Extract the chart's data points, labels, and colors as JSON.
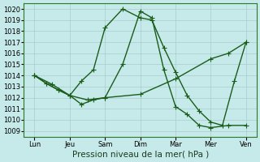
{
  "title": "",
  "xlabel": "Pression niveau de la mer( hPa )",
  "background_color": "#c6eaea",
  "grid_color": "#a8cccc",
  "line_color": "#1a5c1a",
  "xtick_labels": [
    "Lun",
    "Jeu",
    "Sam",
    "Dim",
    "Mar",
    "Mer",
    "Ven"
  ],
  "xtick_positions": [
    0,
    1,
    2,
    3,
    4,
    5,
    6
  ],
  "ylim": [
    1008.5,
    1020.5
  ],
  "yticks": [
    1009,
    1010,
    1011,
    1012,
    1013,
    1014,
    1015,
    1016,
    1017,
    1018,
    1019,
    1020
  ],
  "line1_x": [
    0,
    0.33,
    0.67,
    1.0,
    1.33,
    1.67,
    2.0,
    2.5,
    3.0,
    3.33,
    3.67,
    4.0,
    4.33,
    4.67,
    5.0,
    5.33,
    5.67,
    6.0
  ],
  "line1_y": [
    1014.0,
    1013.3,
    1012.7,
    1012.2,
    1013.5,
    1014.5,
    1018.3,
    1020.0,
    1019.2,
    1019.0,
    1016.5,
    1014.3,
    1012.2,
    1010.8,
    1009.8,
    1009.5,
    1013.5,
    1017.0
  ],
  "line2_x": [
    0,
    0.33,
    0.67,
    1.0,
    1.33,
    1.67,
    2.0,
    2.5,
    3.0,
    3.33,
    3.67,
    4.0,
    4.33,
    4.67,
    5.0,
    5.5,
    6.0
  ],
  "line2_y": [
    1014.0,
    1013.3,
    1012.7,
    1012.2,
    1011.4,
    1011.8,
    1012.0,
    1015.0,
    1019.8,
    1019.2,
    1014.5,
    1011.2,
    1010.5,
    1009.5,
    1009.3,
    1009.5,
    1009.5
  ],
  "line3_x": [
    0,
    0.5,
    1.0,
    1.5,
    2.0,
    3.0,
    4.0,
    5.0,
    5.5,
    6.0
  ],
  "line3_y": [
    1014.0,
    1013.2,
    1012.2,
    1011.8,
    1012.0,
    1012.3,
    1013.7,
    1015.5,
    1016.0,
    1017.0
  ],
  "marker_size": 2.5,
  "line_width": 1.0,
  "font_size_ticks": 6,
  "font_size_xlabel": 7.5
}
